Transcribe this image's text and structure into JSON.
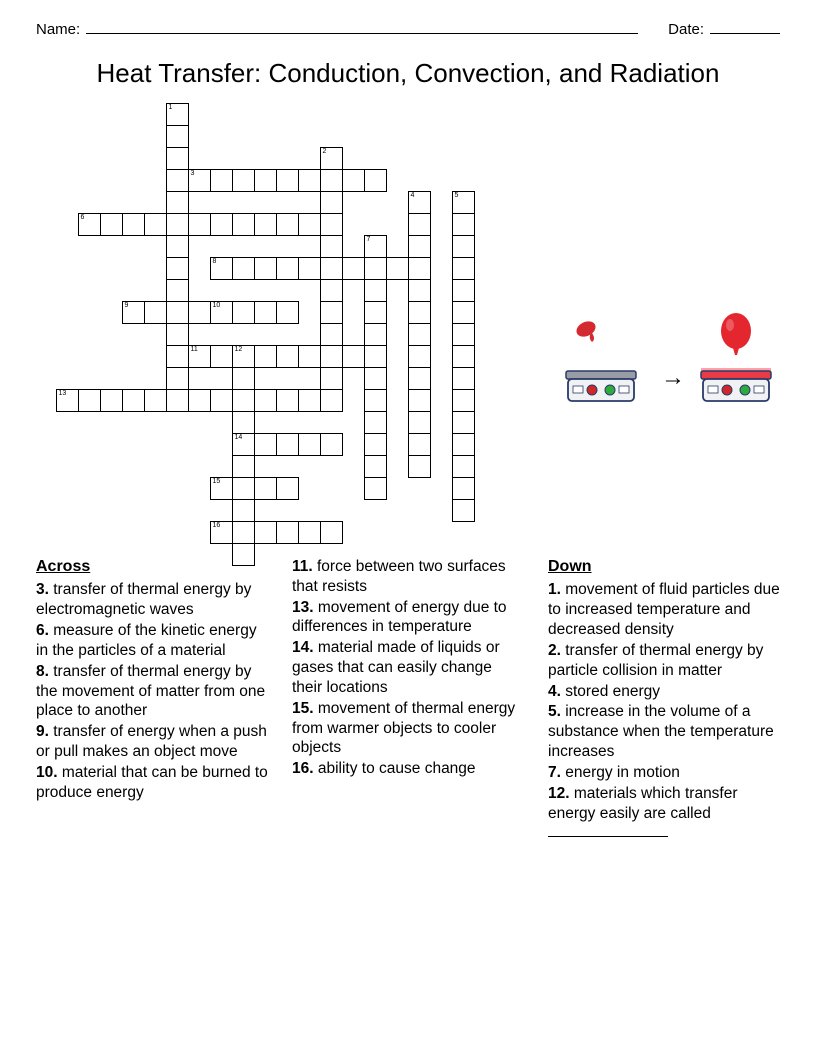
{
  "header": {
    "name_label": "Name:",
    "date_label": "Date:"
  },
  "title": "Heat Transfer: Conduction, Convection, and Radiation",
  "grid": {
    "cell_size": 23,
    "cells": [
      {
        "r": 0,
        "c": 5,
        "n": "1"
      },
      {
        "r": 1,
        "c": 5
      },
      {
        "r": 2,
        "c": 5
      },
      {
        "r": 2,
        "c": 12,
        "n": "2"
      },
      {
        "r": 3,
        "c": 5
      },
      {
        "r": 3,
        "c": 6,
        "n": "3"
      },
      {
        "r": 3,
        "c": 7
      },
      {
        "r": 3,
        "c": 8
      },
      {
        "r": 3,
        "c": 9
      },
      {
        "r": 3,
        "c": 10
      },
      {
        "r": 3,
        "c": 11
      },
      {
        "r": 3,
        "c": 12
      },
      {
        "r": 3,
        "c": 13
      },
      {
        "r": 3,
        "c": 14
      },
      {
        "r": 4,
        "c": 5
      },
      {
        "r": 4,
        "c": 12
      },
      {
        "r": 4,
        "c": 16,
        "n": "4"
      },
      {
        "r": 4,
        "c": 18,
        "n": "5"
      },
      {
        "r": 5,
        "c": 1,
        "n": "6"
      },
      {
        "r": 5,
        "c": 2
      },
      {
        "r": 5,
        "c": 3
      },
      {
        "r": 5,
        "c": 4
      },
      {
        "r": 5,
        "c": 5
      },
      {
        "r": 5,
        "c": 6
      },
      {
        "r": 5,
        "c": 7
      },
      {
        "r": 5,
        "c": 8
      },
      {
        "r": 5,
        "c": 9
      },
      {
        "r": 5,
        "c": 10
      },
      {
        "r": 5,
        "c": 11
      },
      {
        "r": 5,
        "c": 12
      },
      {
        "r": 5,
        "c": 16
      },
      {
        "r": 5,
        "c": 18
      },
      {
        "r": 6,
        "c": 5
      },
      {
        "r": 6,
        "c": 12
      },
      {
        "r": 6,
        "c": 14,
        "n": "7"
      },
      {
        "r": 6,
        "c": 16
      },
      {
        "r": 6,
        "c": 18
      },
      {
        "r": 7,
        "c": 5
      },
      {
        "r": 7,
        "c": 7,
        "n": "8"
      },
      {
        "r": 7,
        "c": 8
      },
      {
        "r": 7,
        "c": 9
      },
      {
        "r": 7,
        "c": 10
      },
      {
        "r": 7,
        "c": 11
      },
      {
        "r": 7,
        "c": 12
      },
      {
        "r": 7,
        "c": 13
      },
      {
        "r": 7,
        "c": 14
      },
      {
        "r": 7,
        "c": 15
      },
      {
        "r": 7,
        "c": 16
      },
      {
        "r": 7,
        "c": 18
      },
      {
        "r": 8,
        "c": 5
      },
      {
        "r": 8,
        "c": 12
      },
      {
        "r": 8,
        "c": 14
      },
      {
        "r": 8,
        "c": 16
      },
      {
        "r": 8,
        "c": 18
      },
      {
        "r": 9,
        "c": 3,
        "n": "9"
      },
      {
        "r": 9,
        "c": 4
      },
      {
        "r": 9,
        "c": 5
      },
      {
        "r": 9,
        "c": 6
      },
      {
        "r": 9,
        "c": 7,
        "n": "10"
      },
      {
        "r": 9,
        "c": 8
      },
      {
        "r": 9,
        "c": 9
      },
      {
        "r": 9,
        "c": 10
      },
      {
        "r": 9,
        "c": 12
      },
      {
        "r": 9,
        "c": 14
      },
      {
        "r": 9,
        "c": 16
      },
      {
        "r": 9,
        "c": 18
      },
      {
        "r": 10,
        "c": 5
      },
      {
        "r": 10,
        "c": 12
      },
      {
        "r": 10,
        "c": 14
      },
      {
        "r": 10,
        "c": 16
      },
      {
        "r": 10,
        "c": 18
      },
      {
        "r": 11,
        "c": 5
      },
      {
        "r": 11,
        "c": 6,
        "n": "11"
      },
      {
        "r": 11,
        "c": 7
      },
      {
        "r": 11,
        "c": 8,
        "n": "12"
      },
      {
        "r": 11,
        "c": 9
      },
      {
        "r": 11,
        "c": 10
      },
      {
        "r": 11,
        "c": 11
      },
      {
        "r": 11,
        "c": 12
      },
      {
        "r": 11,
        "c": 13
      },
      {
        "r": 11,
        "c": 14
      },
      {
        "r": 11,
        "c": 16
      },
      {
        "r": 11,
        "c": 18
      },
      {
        "r": 12,
        "c": 5
      },
      {
        "r": 12,
        "c": 8
      },
      {
        "r": 12,
        "c": 12
      },
      {
        "r": 12,
        "c": 14
      },
      {
        "r": 12,
        "c": 16
      },
      {
        "r": 12,
        "c": 18
      },
      {
        "r": 13,
        "c": 0,
        "n": "13"
      },
      {
        "r": 13,
        "c": 1
      },
      {
        "r": 13,
        "c": 2
      },
      {
        "r": 13,
        "c": 3
      },
      {
        "r": 13,
        "c": 4
      },
      {
        "r": 13,
        "c": 5
      },
      {
        "r": 13,
        "c": 6
      },
      {
        "r": 13,
        "c": 7
      },
      {
        "r": 13,
        "c": 8
      },
      {
        "r": 13,
        "c": 9
      },
      {
        "r": 13,
        "c": 10
      },
      {
        "r": 13,
        "c": 11
      },
      {
        "r": 13,
        "c": 12
      },
      {
        "r": 13,
        "c": 14
      },
      {
        "r": 13,
        "c": 16
      },
      {
        "r": 13,
        "c": 18
      },
      {
        "r": 14,
        "c": 8
      },
      {
        "r": 14,
        "c": 14
      },
      {
        "r": 14,
        "c": 16
      },
      {
        "r": 14,
        "c": 18
      },
      {
        "r": 15,
        "c": 8,
        "n": "14"
      },
      {
        "r": 15,
        "c": 9
      },
      {
        "r": 15,
        "c": 10
      },
      {
        "r": 15,
        "c": 11
      },
      {
        "r": 15,
        "c": 12
      },
      {
        "r": 15,
        "c": 14
      },
      {
        "r": 15,
        "c": 16
      },
      {
        "r": 15,
        "c": 18
      },
      {
        "r": 16,
        "c": 8
      },
      {
        "r": 16,
        "c": 14
      },
      {
        "r": 16,
        "c": 16
      },
      {
        "r": 16,
        "c": 18
      },
      {
        "r": 17,
        "c": 7,
        "n": "15"
      },
      {
        "r": 17,
        "c": 8
      },
      {
        "r": 17,
        "c": 9
      },
      {
        "r": 17,
        "c": 10
      },
      {
        "r": 17,
        "c": 14
      },
      {
        "r": 17,
        "c": 18
      },
      {
        "r": 18,
        "c": 8
      },
      {
        "r": 18,
        "c": 18
      },
      {
        "r": 19,
        "c": 7,
        "n": "16"
      },
      {
        "r": 19,
        "c": 8
      },
      {
        "r": 19,
        "c": 9
      },
      {
        "r": 19,
        "c": 10
      },
      {
        "r": 19,
        "c": 11
      },
      {
        "r": 19,
        "c": 12
      },
      {
        "r": 20,
        "c": 8
      }
    ]
  },
  "illustration": {
    "arrow": "→",
    "balloon_deflated_color": "#d4292f",
    "balloon_inflated_color": "#e4262e",
    "hotplate_body": "#f1f2f4",
    "hotplate_top_off": "#9a9ca5",
    "hotplate_top_on": "#ea3a45",
    "knob_red": "#d02828",
    "knob_green": "#2faa3e",
    "outline": "#2a3a6a"
  },
  "clues": {
    "across_title": "Across",
    "down_title": "Down",
    "col1": [
      {
        "n": "3.",
        "t": "transfer of thermal energy by electromagnetic waves"
      },
      {
        "n": "6.",
        "t": "measure of the kinetic energy in the particles of a material"
      },
      {
        "n": "8.",
        "t": "transfer of thermal energy by the movement of matter from one place to another"
      },
      {
        "n": "9.",
        "t": "transfer of energy when a push or pull makes an object move"
      },
      {
        "n": "10.",
        "t": "material that can be burned to produce energy"
      }
    ],
    "col2": [
      {
        "n": "11.",
        "t": "force between two surfaces that resists"
      },
      {
        "n": "13.",
        "t": "movement of energy due to differences in temperature"
      },
      {
        "n": "14.",
        "t": "material made of liquids or gases that can easily change their locations"
      },
      {
        "n": "15.",
        "t": "movement of thermal energy from warmer objects to cooler objects"
      },
      {
        "n": "16.",
        "t": "ability to cause change"
      }
    ],
    "down": [
      {
        "n": "1.",
        "t": "movement of fluid particles due to increased temperature and decreased density"
      },
      {
        "n": "2.",
        "t": "transfer of thermal energy by particle collision in matter"
      },
      {
        "n": "4.",
        "t": "stored energy"
      },
      {
        "n": "5.",
        "t": "increase in the volume of a substance when the temperature increases"
      },
      {
        "n": "7.",
        "t": "energy in motion"
      },
      {
        "n": "12.",
        "t": "materials which transfer energy easily are called",
        "blank": true
      }
    ]
  }
}
